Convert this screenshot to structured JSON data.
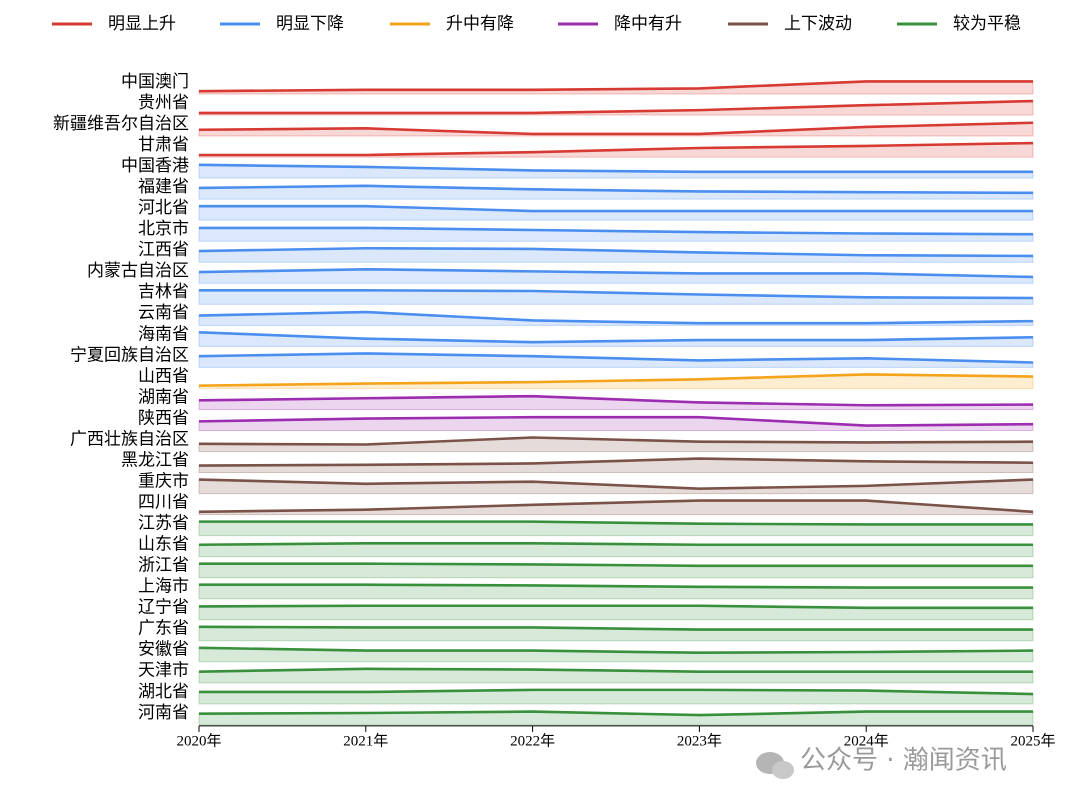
{
  "chart_data": {
    "type": "ridgeline",
    "x": [
      "2020年",
      "2021年",
      "2022年",
      "2023年",
      "2024年",
      "2025年"
    ],
    "legend": [
      {
        "name": "明显上升",
        "color": "#d63a32"
      },
      {
        "name": "明显下降",
        "color": "#4a8ef0"
      },
      {
        "name": "升中有降",
        "color": "#f5a31a"
      },
      {
        "name": "降中有升",
        "color": "#9c2cb0"
      },
      {
        "name": "上下波动",
        "color": "#7b5247"
      },
      {
        "name": "较为平稳",
        "color": "#39903c"
      }
    ],
    "series": [
      {
        "name": "中国澳门",
        "color": "#d63a32",
        "values": [
          0.2,
          0.3,
          0.3,
          0.4,
          0.9,
          0.9
        ]
      },
      {
        "name": "贵州省",
        "color": "#d63a32",
        "values": [
          0.15,
          0.15,
          0.15,
          0.35,
          0.7,
          1.0
        ]
      },
      {
        "name": "新疆维吾尔自治区",
        "color": "#d63a32",
        "values": [
          0.45,
          0.55,
          0.15,
          0.15,
          0.65,
          0.95
        ]
      },
      {
        "name": "甘肃省",
        "color": "#d63a32",
        "values": [
          0.15,
          0.15,
          0.35,
          0.65,
          0.8,
          1.0
        ]
      },
      {
        "name": "中国香港",
        "color": "#4a8ef0",
        "values": [
          0.95,
          0.8,
          0.55,
          0.45,
          0.45,
          0.45
        ]
      },
      {
        "name": "福建省",
        "color": "#4a8ef0",
        "values": [
          0.8,
          0.95,
          0.7,
          0.55,
          0.5,
          0.45
        ]
      },
      {
        "name": "河北省",
        "color": "#4a8ef0",
        "values": [
          1.0,
          1.0,
          0.65,
          0.65,
          0.65,
          0.65
        ]
      },
      {
        "name": "北京市",
        "color": "#4a8ef0",
        "values": [
          0.95,
          0.95,
          0.8,
          0.65,
          0.55,
          0.5
        ]
      },
      {
        "name": "江西省",
        "color": "#4a8ef0",
        "values": [
          0.8,
          1.0,
          0.95,
          0.7,
          0.5,
          0.45
        ]
      },
      {
        "name": "内蒙古自治区",
        "color": "#4a8ef0",
        "values": [
          0.8,
          1.0,
          0.85,
          0.7,
          0.7,
          0.45
        ]
      },
      {
        "name": "吉林省",
        "color": "#4a8ef0",
        "values": [
          1.0,
          1.0,
          0.95,
          0.7,
          0.5,
          0.45
        ]
      },
      {
        "name": "云南省",
        "color": "#4a8ef0",
        "values": [
          0.7,
          0.95,
          0.35,
          0.15,
          0.15,
          0.3
        ]
      },
      {
        "name": "海南省",
        "color": "#4a8ef0",
        "values": [
          1.0,
          0.55,
          0.3,
          0.45,
          0.45,
          0.65
        ]
      },
      {
        "name": "宁夏回族自治区",
        "color": "#4a8ef0",
        "values": [
          0.8,
          1.0,
          0.8,
          0.5,
          0.65,
          0.35
        ]
      },
      {
        "name": "山西省",
        "color": "#f5a31a",
        "values": [
          0.2,
          0.35,
          0.45,
          0.65,
          1.0,
          0.85
        ]
      },
      {
        "name": "湖南省",
        "color": "#9c2cb0",
        "values": [
          0.65,
          0.8,
          0.95,
          0.5,
          0.3,
          0.35
        ]
      },
      {
        "name": "陕西省",
        "color": "#9c2cb0",
        "values": [
          0.65,
          0.85,
          0.95,
          0.95,
          0.35,
          0.45
        ]
      },
      {
        "name": "广西壮族自治区",
        "color": "#7b5247",
        "values": [
          0.55,
          0.5,
          1.0,
          0.7,
          0.65,
          0.7
        ]
      },
      {
        "name": "黑龙江省",
        "color": "#7b5247",
        "values": [
          0.5,
          0.55,
          0.65,
          1.0,
          0.8,
          0.7
        ]
      },
      {
        "name": "重庆市",
        "color": "#7b5247",
        "values": [
          1.0,
          0.7,
          0.85,
          0.35,
          0.55,
          1.0
        ]
      },
      {
        "name": "四川省",
        "color": "#7b5247",
        "values": [
          0.2,
          0.35,
          0.7,
          1.0,
          1.0,
          0.2
        ]
      },
      {
        "name": "江苏省",
        "color": "#39903c",
        "values": [
          1.0,
          1.0,
          1.0,
          0.85,
          0.8,
          0.8
        ]
      },
      {
        "name": "山东省",
        "color": "#39903c",
        "values": [
          0.85,
          0.95,
          0.95,
          0.85,
          0.85,
          0.85
        ]
      },
      {
        "name": "浙江省",
        "color": "#39903c",
        "values": [
          1.0,
          1.0,
          0.95,
          0.85,
          0.85,
          0.85
        ]
      },
      {
        "name": "上海市",
        "color": "#39903c",
        "values": [
          1.0,
          1.0,
          0.95,
          0.85,
          0.8,
          0.8
        ]
      },
      {
        "name": "辽宁省",
        "color": "#39903c",
        "values": [
          0.95,
          1.0,
          1.0,
          1.0,
          0.85,
          0.85
        ]
      },
      {
        "name": "广东省",
        "color": "#39903c",
        "values": [
          1.0,
          0.95,
          0.95,
          0.8,
          0.8,
          0.8
        ]
      },
      {
        "name": "安徽省",
        "color": "#39903c",
        "values": [
          1.0,
          0.8,
          0.8,
          0.65,
          0.7,
          0.8
        ]
      },
      {
        "name": "天津市",
        "color": "#39903c",
        "values": [
          0.8,
          1.0,
          0.95,
          0.8,
          0.8,
          0.8
        ]
      },
      {
        "name": "湖北省",
        "color": "#39903c",
        "values": [
          0.85,
          0.85,
          1.0,
          1.0,
          0.95,
          0.7
        ]
      },
      {
        "name": "河南省",
        "color": "#39903c",
        "values": [
          0.8,
          0.85,
          0.95,
          0.7,
          0.95,
          0.95
        ]
      }
    ],
    "watermark": "公众号 · 瀚闻资讯"
  }
}
